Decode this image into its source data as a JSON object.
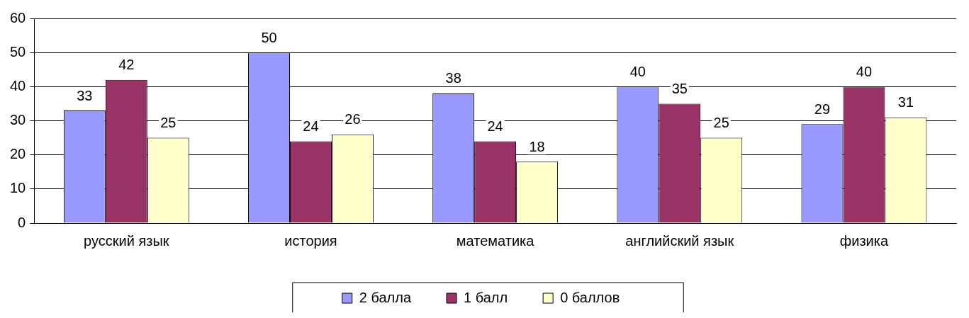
{
  "chart_data": {
    "type": "bar",
    "categories": [
      "русский язык",
      "история",
      "математика",
      "английский язык",
      "физика"
    ],
    "series": [
      {
        "name": "2 балла",
        "color": "#9999ff",
        "values": [
          33,
          50,
          38,
          40,
          29
        ]
      },
      {
        "name": "1 балл",
        "color": "#993366",
        "values": [
          42,
          24,
          24,
          35,
          40
        ]
      },
      {
        "name": "0 баллов",
        "color": "#ffffcc",
        "values": [
          25,
          26,
          18,
          25,
          31
        ]
      }
    ],
    "ylim": [
      0,
      60
    ],
    "yticks": [
      0,
      10,
      20,
      30,
      40,
      50,
      60
    ],
    "grid": "y",
    "legend": "bottom",
    "data_labels": true
  }
}
